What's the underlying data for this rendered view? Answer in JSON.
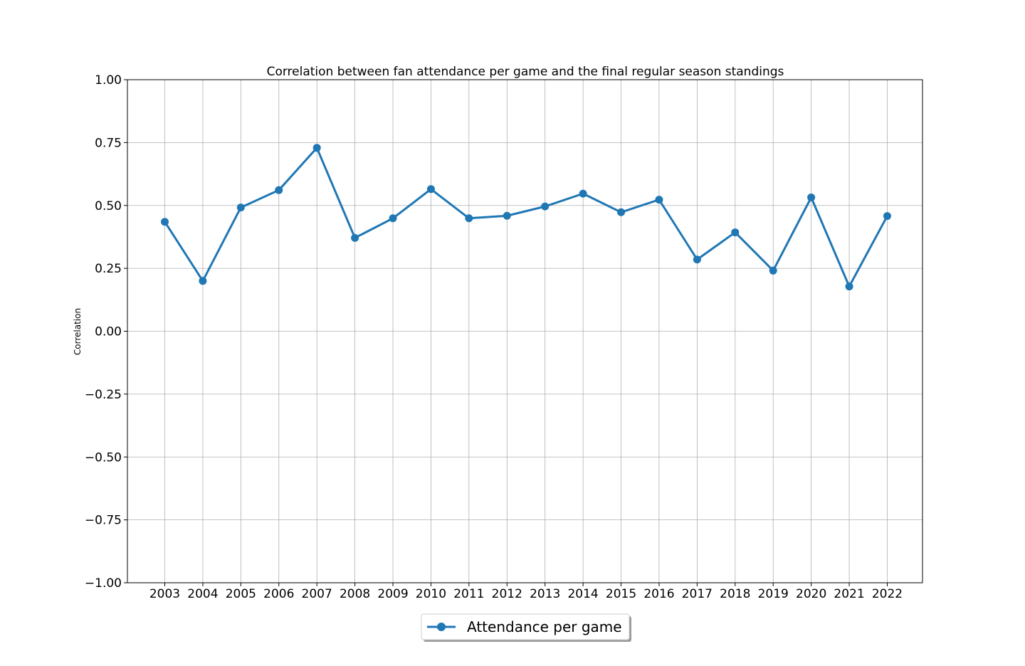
{
  "chart_data": {
    "type": "line",
    "title": "Correlation between fan attendance per game and the final regular season standings",
    "xlabel": "",
    "ylabel": "Correlation",
    "categories": [
      "2003",
      "2004",
      "2005",
      "2006",
      "2007",
      "2008",
      "2009",
      "2010",
      "2011",
      "2012",
      "2013",
      "2014",
      "2015",
      "2016",
      "2017",
      "2018",
      "2019",
      "2020",
      "2021",
      "2022"
    ],
    "series": [
      {
        "name": "Attendance per game",
        "values": [
          0.435,
          0.2,
          0.492,
          0.561,
          0.729,
          0.371,
          0.449,
          0.565,
          0.449,
          0.459,
          0.496,
          0.547,
          0.473,
          0.523,
          0.285,
          0.393,
          0.241,
          0.532,
          0.178,
          0.458
        ]
      }
    ],
    "ylim": [
      -1.0,
      1.0
    ],
    "yticks": [
      "1.00",
      "0.75",
      "0.50",
      "0.25",
      "0.00",
      "−0.25",
      "−0.50",
      "−0.75",
      "−1.00"
    ],
    "ytick_values": [
      1.0,
      0.75,
      0.5,
      0.25,
      0.0,
      -0.25,
      -0.5,
      -0.75,
      -1.0
    ],
    "grid": true,
    "legend_position": "bottom-center",
    "line_color": "#1f77b4"
  }
}
